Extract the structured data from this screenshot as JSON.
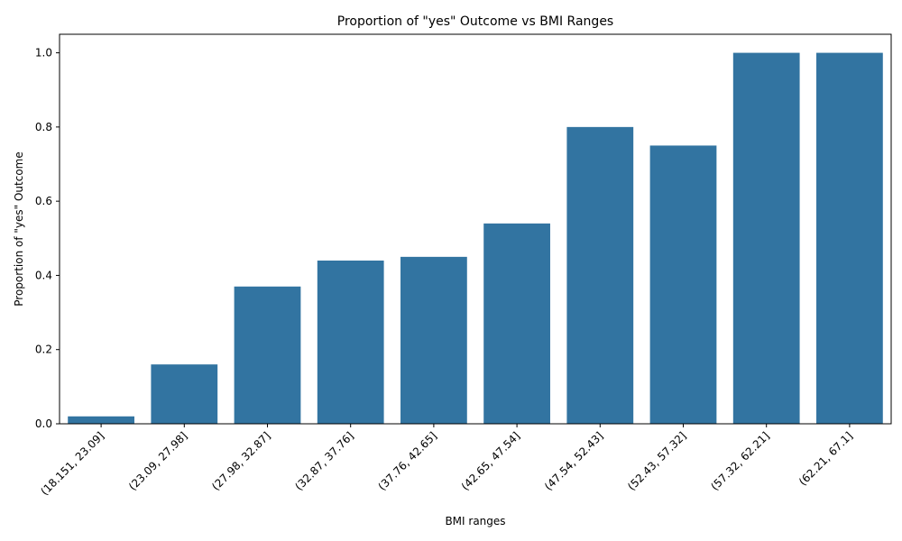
{
  "chart_data": {
    "type": "bar",
    "title": "Proportion of \"yes\" Outcome vs BMI Ranges",
    "xlabel": "BMI ranges",
    "ylabel": "Proportion of \"yes\" Outcome",
    "categories": [
      "(18.151, 23.09]",
      "(23.09, 27.98]",
      "(27.98, 32.87]",
      "(32.87, 37.76]",
      "(37.76, 42.65]",
      "(42.65, 47.54]",
      "(47.54, 52.43]",
      "(52.43, 57.32]",
      "(57.32, 62.21]",
      "(62.21, 67.1]"
    ],
    "values": [
      0.02,
      0.16,
      0.37,
      0.44,
      0.45,
      0.54,
      0.8,
      0.75,
      1.0,
      1.0
    ],
    "ylim": [
      0,
      1.05
    ],
    "yticks": [
      "0.0",
      "0.2",
      "0.4",
      "0.6",
      "0.8",
      "1.0"
    ],
    "bar_color": "#3274a1",
    "grid": false
  }
}
